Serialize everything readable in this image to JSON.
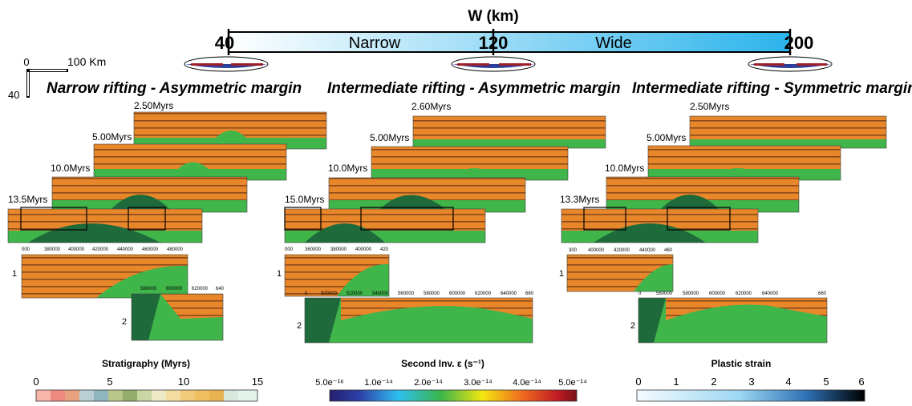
{
  "header": {
    "title": "W (km)",
    "scale_ticks": [
      "40",
      "120",
      "200"
    ],
    "scale_words": [
      "Narrow",
      "Wide"
    ]
  },
  "scale_bar": {
    "zero": "0",
    "hundred": "100 Km",
    "forty": "40"
  },
  "columns": [
    {
      "title": "Narrow rifting - Asymmetric margin",
      "times": [
        "2.50Myrs",
        "5.00Myrs",
        "10.0Myrs",
        "13.5Myrs"
      ],
      "zoom_labels": [
        "1",
        "2"
      ],
      "zoom1_ticks": [
        "000",
        "380000",
        "400000",
        "420000",
        "440000",
        "460000",
        "480000"
      ],
      "zoom2_ticks": [
        "580000",
        "600000",
        "620000",
        "640"
      ]
    },
    {
      "title": "Intermediate rifting - Asymmetric margin",
      "times": [
        "2.60Myrs",
        "5.00Myrs",
        "10.0Myrs",
        "15.0Myrs"
      ],
      "zoom_labels": [
        "1",
        "2"
      ],
      "zoom1_ticks": [
        "000",
        "360000",
        "380000",
        "400000",
        "420"
      ],
      "zoom2_ticks": [
        "0",
        "500000",
        "520000",
        "540000",
        "560000",
        "580000",
        "600000",
        "620000",
        "640000",
        "660"
      ]
    },
    {
      "title": "Intermediate rifting - Symmetric margin",
      "times": [
        "2.50Myrs",
        "5.00Myrs",
        "10.0Myrs",
        "13.3Myrs"
      ],
      "zoom_labels": [
        "1",
        "2"
      ],
      "zoom1_ticks": [
        "300",
        "400000",
        "420000",
        "440000",
        "460"
      ],
      "zoom2_ticks": [
        "0",
        "560000",
        "580000",
        "600000",
        "620000",
        "640000",
        "660"
      ]
    }
  ],
  "legends": [
    {
      "title": "Stratigraphy (Myrs)",
      "ticks": [
        "0",
        "5",
        "10",
        "15"
      ]
    },
    {
      "title": "Second Inv. ε (s⁻¹)",
      "ticks": [
        "5.0e⁻¹⁶",
        "1.0e⁻¹⁴",
        "2.0e⁻¹⁴",
        "3.0e⁻¹⁴",
        "4.0e⁻¹⁴",
        "5.0e⁻¹⁴"
      ]
    },
    {
      "title": "Plastic strain",
      "ticks": [
        "0",
        "1",
        "2",
        "3",
        "4",
        "5",
        "6"
      ]
    }
  ],
  "colors": {
    "orange": "#e8862a",
    "dark_band": "#8a4a1c",
    "green": "#3fb54a",
    "dark_green": "#1e6a3a",
    "mantle_blue": "#2a3f9a",
    "crust_red": "#a01e2a"
  }
}
